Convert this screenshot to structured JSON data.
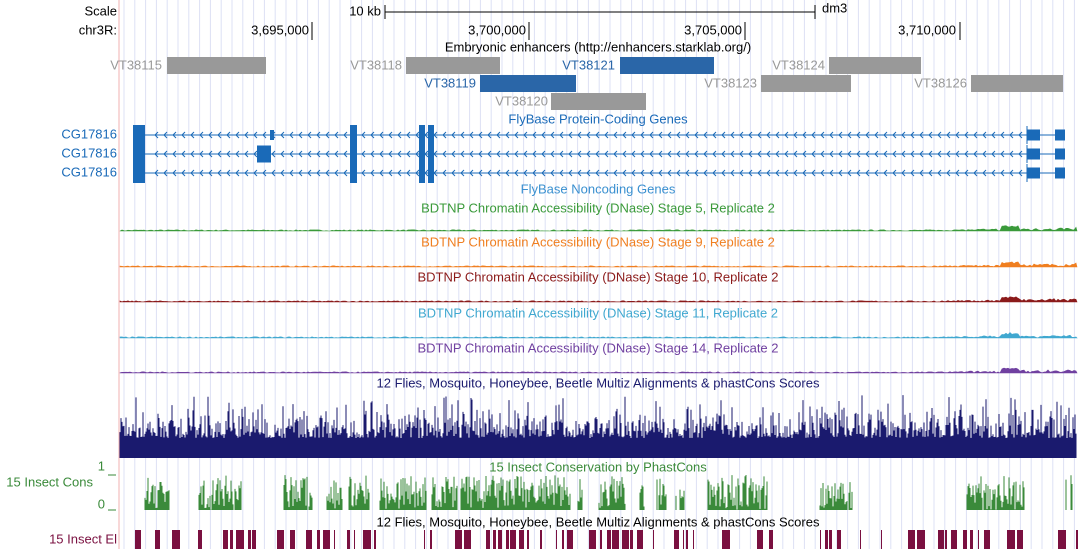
{
  "scale": {
    "label": "Scale",
    "size": "10 kb",
    "assembly": "dm3"
  },
  "position": {
    "chrom": "chr3R:",
    "ticks": [
      "3,695,000",
      "3,700,000",
      "3,705,000",
      "3,710,000"
    ]
  },
  "enhancers": {
    "title": "Embryonic enhancers (http://enhancers.starklab.org/)",
    "items": [
      "VT38115",
      "VT38118",
      "VT38121",
      "VT38124",
      "VT38119",
      "VT38123",
      "VT38126",
      "VT38120"
    ]
  },
  "genes": {
    "title": "FlyBase Protein-Coding Genes",
    "rows": [
      "CG17816",
      "CG17816",
      "CG17816"
    ]
  },
  "noncoding": {
    "title": "FlyBase Noncoding Genes"
  },
  "dnase": [
    "BDTNP Chromatin Accessibility (DNase) Stage 5, Replicate 2",
    "BDTNP Chromatin Accessibility (DNase) Stage 9, Replicate 2",
    "BDTNP Chromatin Accessibility (DNase) Stage 10, Replicate 2",
    "BDTNP Chromatin Accessibility (DNase) Stage 11, Replicate 2",
    "BDTNP Chromatin Accessibility (DNase) Stage 14, Replicate 2"
  ],
  "multiz": {
    "title": "12 Flies, Mosquito, Honeybee, Beetle Multiz Alignments & phastCons Scores"
  },
  "cons": {
    "title": "15 Insect Conservation by PhastCons",
    "label": "15 Insect Cons",
    "max": "1",
    "min": "0"
  },
  "elements": {
    "label": "15 Insect El",
    "title": "12 Flies, Mosquito, Honeybee, Beetle Multiz Alignments & phastCons Scores"
  }
}
